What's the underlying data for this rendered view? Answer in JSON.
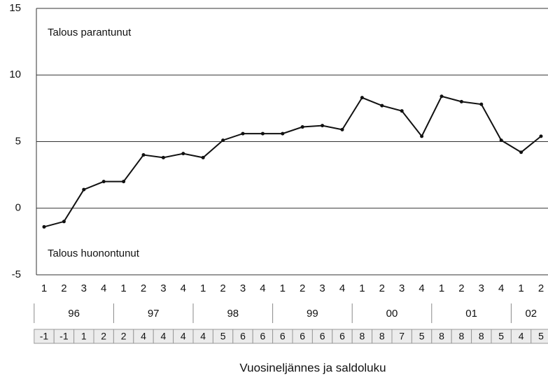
{
  "chart_data": {
    "type": "line",
    "annotations": [
      "Talous parantunut",
      "Talous huonontunut"
    ],
    "x_label": "Vuosineljännes ja saldoluku",
    "categories": [
      "1",
      "2",
      "3",
      "4",
      "1",
      "2",
      "3",
      "4",
      "1",
      "2",
      "3",
      "4",
      "1",
      "2",
      "3",
      "4",
      "1",
      "2",
      "3",
      "4",
      "1",
      "2",
      "3",
      "4",
      "1",
      "2"
    ],
    "groups": [
      {
        "label": "96",
        "span": 4
      },
      {
        "label": "97",
        "span": 4
      },
      {
        "label": "98",
        "span": 4
      },
      {
        "label": "99",
        "span": 4
      },
      {
        "label": "00",
        "span": 4
      },
      {
        "label": "01",
        "span": 4
      },
      {
        "label": "02",
        "span": 2
      }
    ],
    "values": [
      -1.4,
      -1.0,
      1.4,
      2.0,
      2.0,
      4.0,
      3.8,
      4.1,
      3.8,
      5.1,
      5.6,
      5.6,
      5.6,
      6.1,
      6.2,
      5.9,
      8.3,
      7.7,
      7.3,
      5.4,
      8.4,
      8.0,
      7.8,
      5.1,
      4.2,
      5.4
    ],
    "value_labels": [
      "-1",
      "-1",
      "1",
      "2",
      "2",
      "4",
      "4",
      "4",
      "4",
      "5",
      "6",
      "6",
      "6",
      "6",
      "6",
      "6",
      "8",
      "8",
      "7",
      "5",
      "8",
      "8",
      "8",
      "5",
      "4",
      "5"
    ],
    "color": "#111111",
    "ylim": [
      -5,
      15
    ],
    "yticks": [
      -5,
      0,
      5,
      10,
      15
    ],
    "grid": true
  }
}
